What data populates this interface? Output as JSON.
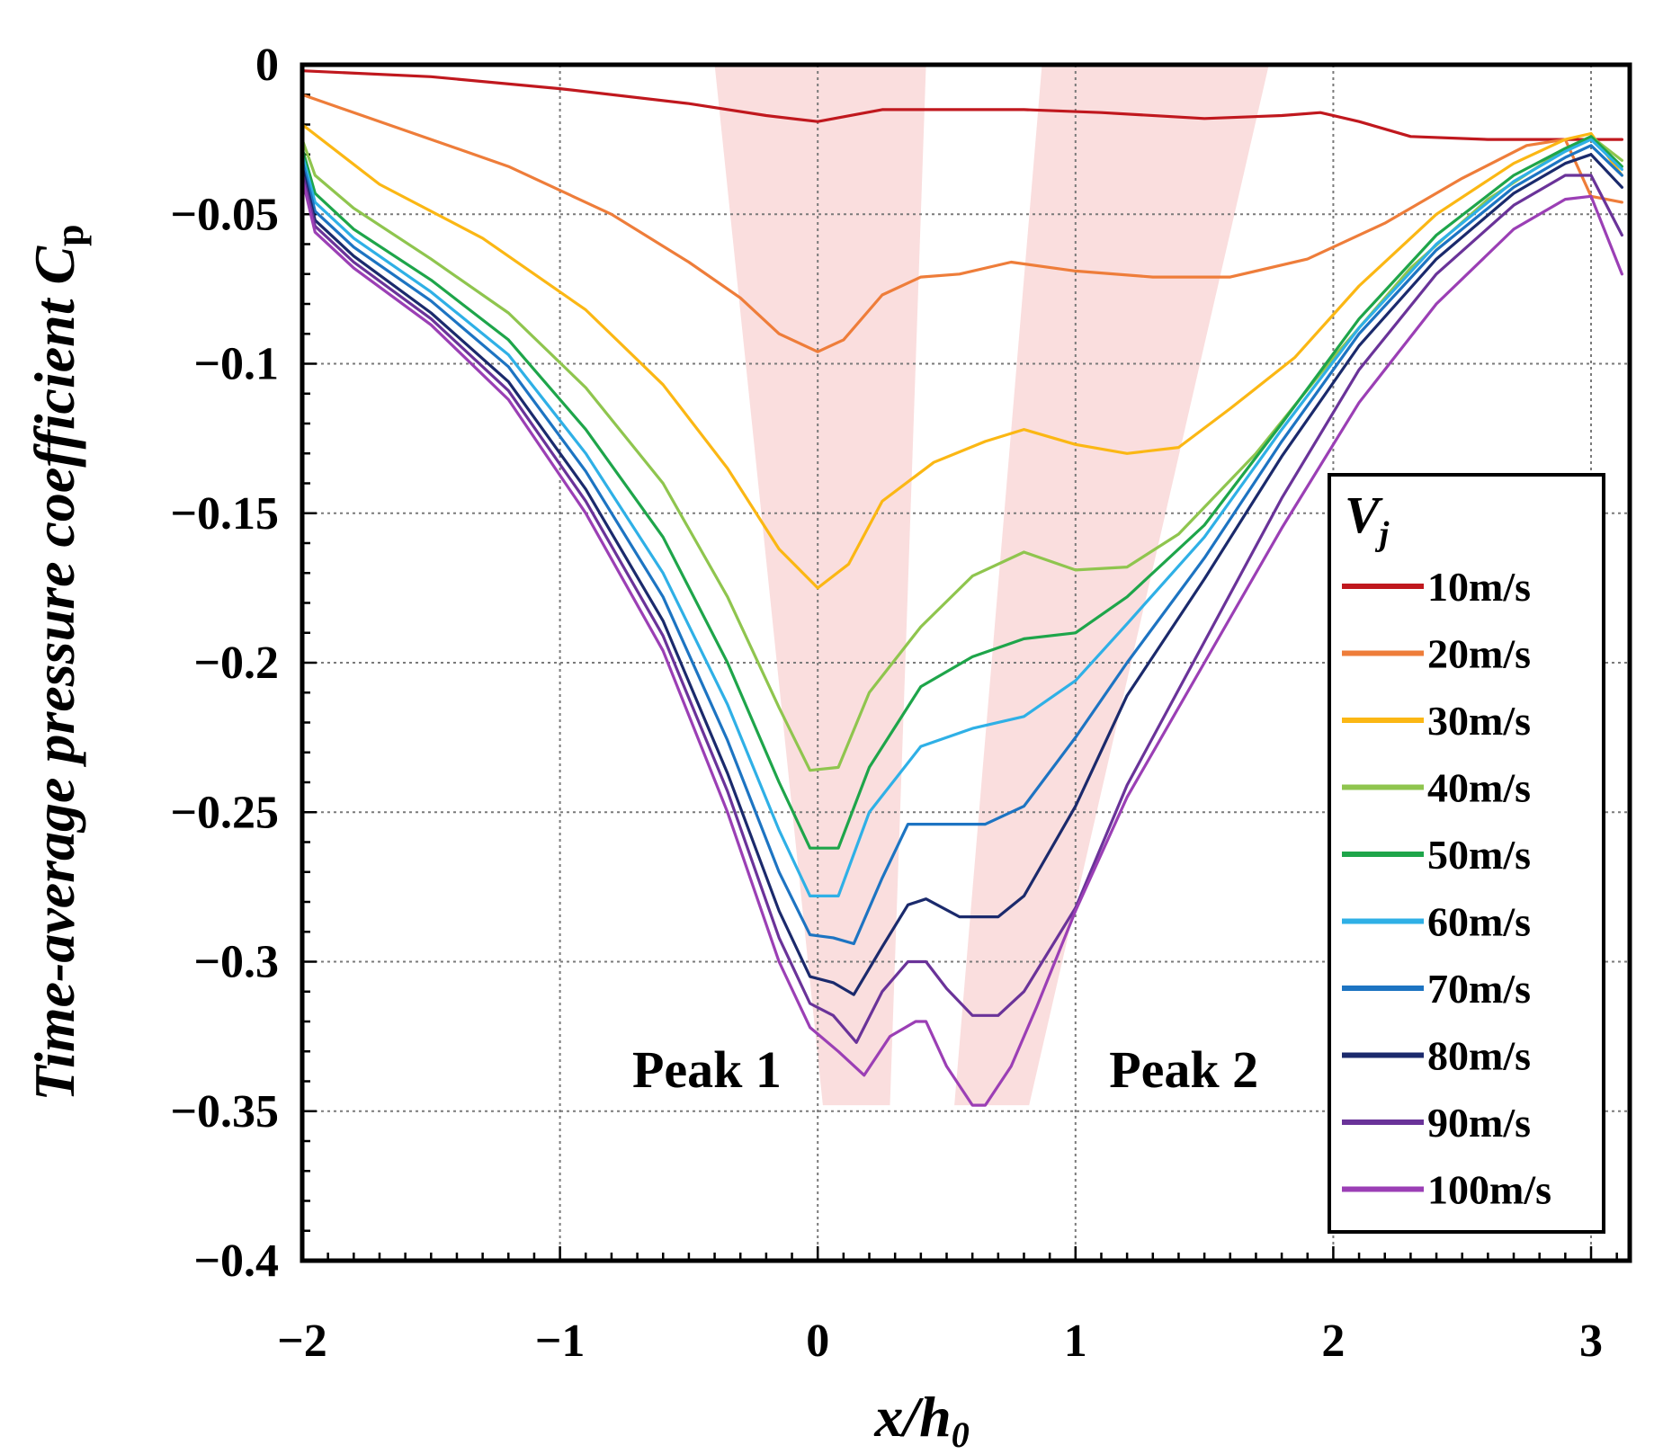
{
  "chart_data": {
    "type": "line",
    "xlabel_main": "x/h",
    "xlabel_sub": "0",
    "ylabel_main": "Time-average pressure coefficient C",
    "ylabel_sub": "p",
    "xlim": [
      -2,
      3.15
    ],
    "ylim": [
      -0.4,
      0
    ],
    "xticks": [
      -2,
      -1,
      0,
      1,
      2,
      3
    ],
    "xtick_labels": [
      "−2",
      "−1",
      "0",
      "1",
      "2",
      "3"
    ],
    "yticks": [
      0,
      -0.05,
      -0.1,
      -0.15,
      -0.2,
      -0.25,
      -0.3,
      -0.35,
      -0.4
    ],
    "ytick_labels": [
      "0",
      "−0.05",
      "−0.1",
      "−0.15",
      "−0.2",
      "−0.25",
      "−0.3",
      "−0.35",
      "−0.4"
    ],
    "grid": true,
    "legend_title": "V",
    "legend_title_sub": "j",
    "legend_position": "right",
    "annotations": [
      {
        "text": "Peak 1",
        "x": -0.43,
        "y": -0.336
      },
      {
        "text": "Peak 2",
        "x": 1.42,
        "y": -0.336
      }
    ],
    "highlight_bands": [
      {
        "color": "#fadede",
        "top": [
          [
            -0.4,
            0
          ],
          [
            0.42,
            0
          ]
        ],
        "bottom": [
          [
            0.02,
            -0.348
          ],
          [
            0.28,
            -0.348
          ]
        ]
      },
      {
        "color": "#fadede",
        "top": [
          [
            0.87,
            0
          ],
          [
            1.75,
            0
          ]
        ],
        "bottom": [
          [
            0.53,
            -0.348
          ],
          [
            0.82,
            -0.348
          ]
        ]
      }
    ],
    "series": [
      {
        "name": "10m/s",
        "color": "#c0181e",
        "x": [
          -2,
          -1.5,
          -1,
          -0.5,
          -0.2,
          0,
          0.25,
          0.5,
          0.8,
          1.1,
          1.5,
          1.8,
          1.95,
          2.1,
          2.3,
          2.6,
          3.0,
          3.12
        ],
        "y": [
          -0.002,
          -0.004,
          -0.008,
          -0.013,
          -0.017,
          -0.019,
          -0.015,
          -0.015,
          -0.015,
          -0.016,
          -0.018,
          -0.017,
          -0.016,
          -0.019,
          -0.024,
          -0.025,
          -0.025,
          -0.025
        ]
      },
      {
        "name": "20m/s",
        "color": "#ee7d3a",
        "x": [
          -2,
          -1.6,
          -1.2,
          -0.8,
          -0.5,
          -0.3,
          -0.15,
          0,
          0.1,
          0.25,
          0.4,
          0.55,
          0.75,
          1.0,
          1.3,
          1.6,
          1.9,
          2.2,
          2.5,
          2.75,
          2.9,
          3.0,
          3.12
        ],
        "y": [
          -0.01,
          -0.022,
          -0.034,
          -0.05,
          -0.066,
          -0.078,
          -0.09,
          -0.096,
          -0.092,
          -0.077,
          -0.071,
          -0.07,
          -0.066,
          -0.069,
          -0.071,
          -0.071,
          -0.065,
          -0.053,
          -0.038,
          -0.027,
          -0.025,
          -0.044,
          -0.046
        ]
      },
      {
        "name": "30m/s",
        "color": "#fbb714",
        "x": [
          -2,
          -1.7,
          -1.3,
          -0.9,
          -0.6,
          -0.35,
          -0.15,
          0,
          0.12,
          0.25,
          0.45,
          0.65,
          0.8,
          1.0,
          1.2,
          1.4,
          1.6,
          1.85,
          2.1,
          2.4,
          2.7,
          2.9,
          3.0,
          3.12
        ],
        "y": [
          -0.02,
          -0.04,
          -0.058,
          -0.082,
          -0.107,
          -0.135,
          -0.162,
          -0.175,
          -0.167,
          -0.146,
          -0.133,
          -0.126,
          -0.122,
          -0.127,
          -0.13,
          -0.128,
          -0.115,
          -0.098,
          -0.074,
          -0.05,
          -0.033,
          -0.025,
          -0.023,
          -0.037
        ]
      },
      {
        "name": "40m/s",
        "color": "#8fc54e",
        "x": [
          -2,
          -1.95,
          -1.8,
          -1.5,
          -1.2,
          -0.9,
          -0.6,
          -0.35,
          -0.15,
          -0.03,
          0.08,
          0.2,
          0.4,
          0.6,
          0.8,
          1.0,
          1.2,
          1.4,
          1.7,
          2.0,
          2.3,
          2.6,
          2.85,
          3.0,
          3.12
        ],
        "y": [
          -0.025,
          -0.037,
          -0.048,
          -0.065,
          -0.083,
          -0.108,
          -0.14,
          -0.178,
          -0.215,
          -0.236,
          -0.235,
          -0.21,
          -0.188,
          -0.171,
          -0.163,
          -0.169,
          -0.168,
          -0.157,
          -0.13,
          -0.098,
          -0.068,
          -0.045,
          -0.031,
          -0.024,
          -0.032
        ]
      },
      {
        "name": "50m/s",
        "color": "#1ea54a",
        "x": [
          -2,
          -1.95,
          -1.8,
          -1.5,
          -1.2,
          -0.9,
          -0.6,
          -0.35,
          -0.15,
          -0.03,
          0.08,
          0.2,
          0.4,
          0.6,
          0.8,
          1.0,
          1.2,
          1.5,
          1.8,
          2.1,
          2.4,
          2.7,
          2.9,
          3.0,
          3.12
        ],
        "y": [
          -0.028,
          -0.043,
          -0.055,
          -0.072,
          -0.092,
          -0.122,
          -0.158,
          -0.2,
          -0.24,
          -0.262,
          -0.262,
          -0.235,
          -0.208,
          -0.198,
          -0.192,
          -0.19,
          -0.178,
          -0.154,
          -0.12,
          -0.085,
          -0.057,
          -0.037,
          -0.028,
          -0.024,
          -0.034
        ]
      },
      {
        "name": "60m/s",
        "color": "#2fb0e6",
        "x": [
          -2,
          -1.95,
          -1.8,
          -1.5,
          -1.2,
          -0.9,
          -0.6,
          -0.35,
          -0.15,
          -0.03,
          0.08,
          0.2,
          0.4,
          0.6,
          0.8,
          1.0,
          1.2,
          1.5,
          1.8,
          2.1,
          2.4,
          2.7,
          2.9,
          3.0,
          3.12
        ],
        "y": [
          -0.03,
          -0.046,
          -0.058,
          -0.076,
          -0.097,
          -0.13,
          -0.17,
          -0.214,
          -0.256,
          -0.278,
          -0.278,
          -0.25,
          -0.228,
          -0.222,
          -0.218,
          -0.206,
          -0.187,
          -0.158,
          -0.122,
          -0.088,
          -0.06,
          -0.039,
          -0.029,
          -0.025,
          -0.035
        ]
      },
      {
        "name": "70m/s",
        "color": "#1d74c2",
        "x": [
          -2,
          -1.95,
          -1.8,
          -1.5,
          -1.2,
          -0.9,
          -0.6,
          -0.35,
          -0.15,
          -0.03,
          0.06,
          0.14,
          0.25,
          0.35,
          0.5,
          0.65,
          0.8,
          1.0,
          1.2,
          1.5,
          1.8,
          2.1,
          2.4,
          2.7,
          2.9,
          3.0,
          3.12
        ],
        "y": [
          -0.032,
          -0.049,
          -0.061,
          -0.079,
          -0.101,
          -0.136,
          -0.178,
          -0.226,
          -0.27,
          -0.291,
          -0.292,
          -0.294,
          -0.272,
          -0.254,
          -0.254,
          -0.254,
          -0.248,
          -0.225,
          -0.2,
          -0.165,
          -0.126,
          -0.09,
          -0.062,
          -0.041,
          -0.031,
          -0.027,
          -0.037
        ]
      },
      {
        "name": "80m/s",
        "color": "#1b2a6c",
        "x": [
          -2,
          -1.95,
          -1.8,
          -1.5,
          -1.2,
          -0.9,
          -0.6,
          -0.35,
          -0.15,
          -0.03,
          0.06,
          0.14,
          0.25,
          0.35,
          0.42,
          0.55,
          0.7,
          0.8,
          1.0,
          1.2,
          1.5,
          1.8,
          2.1,
          2.4,
          2.7,
          2.9,
          3.0,
          3.12
        ],
        "y": [
          -0.034,
          -0.052,
          -0.064,
          -0.083,
          -0.106,
          -0.142,
          -0.186,
          -0.237,
          -0.283,
          -0.305,
          -0.307,
          -0.311,
          -0.295,
          -0.281,
          -0.279,
          -0.285,
          -0.285,
          -0.278,
          -0.248,
          -0.211,
          -0.172,
          -0.131,
          -0.094,
          -0.065,
          -0.043,
          -0.033,
          -0.03,
          -0.041
        ]
      },
      {
        "name": "90m/s",
        "color": "#6a3399",
        "x": [
          -2,
          -1.95,
          -1.8,
          -1.5,
          -1.2,
          -0.9,
          -0.6,
          -0.35,
          -0.15,
          -0.03,
          0.06,
          0.15,
          0.25,
          0.35,
          0.42,
          0.5,
          0.6,
          0.7,
          0.8,
          1.0,
          1.2,
          1.5,
          1.8,
          2.1,
          2.4,
          2.7,
          2.9,
          3.0,
          3.12
        ],
        "y": [
          -0.036,
          -0.054,
          -0.066,
          -0.085,
          -0.109,
          -0.146,
          -0.191,
          -0.243,
          -0.292,
          -0.314,
          -0.318,
          -0.327,
          -0.31,
          -0.3,
          -0.3,
          -0.309,
          -0.318,
          -0.318,
          -0.31,
          -0.282,
          -0.241,
          -0.193,
          -0.145,
          -0.102,
          -0.07,
          -0.047,
          -0.037,
          -0.037,
          -0.057
        ]
      },
      {
        "name": "100m/s",
        "color": "#9b3fb5",
        "x": [
          -2,
          -1.95,
          -1.8,
          -1.5,
          -1.2,
          -0.9,
          -0.6,
          -0.35,
          -0.15,
          -0.03,
          0.08,
          0.18,
          0.28,
          0.38,
          0.42,
          0.5,
          0.6,
          0.65,
          0.75,
          0.85,
          1.0,
          1.2,
          1.5,
          1.8,
          2.1,
          2.4,
          2.7,
          2.9,
          3.0,
          3.12
        ],
        "y": [
          -0.038,
          -0.056,
          -0.068,
          -0.087,
          -0.112,
          -0.15,
          -0.196,
          -0.25,
          -0.3,
          -0.322,
          -0.33,
          -0.338,
          -0.325,
          -0.32,
          -0.32,
          -0.335,
          -0.348,
          -0.348,
          -0.335,
          -0.315,
          -0.283,
          -0.245,
          -0.2,
          -0.155,
          -0.113,
          -0.08,
          -0.055,
          -0.045,
          -0.044,
          -0.07
        ]
      }
    ]
  }
}
